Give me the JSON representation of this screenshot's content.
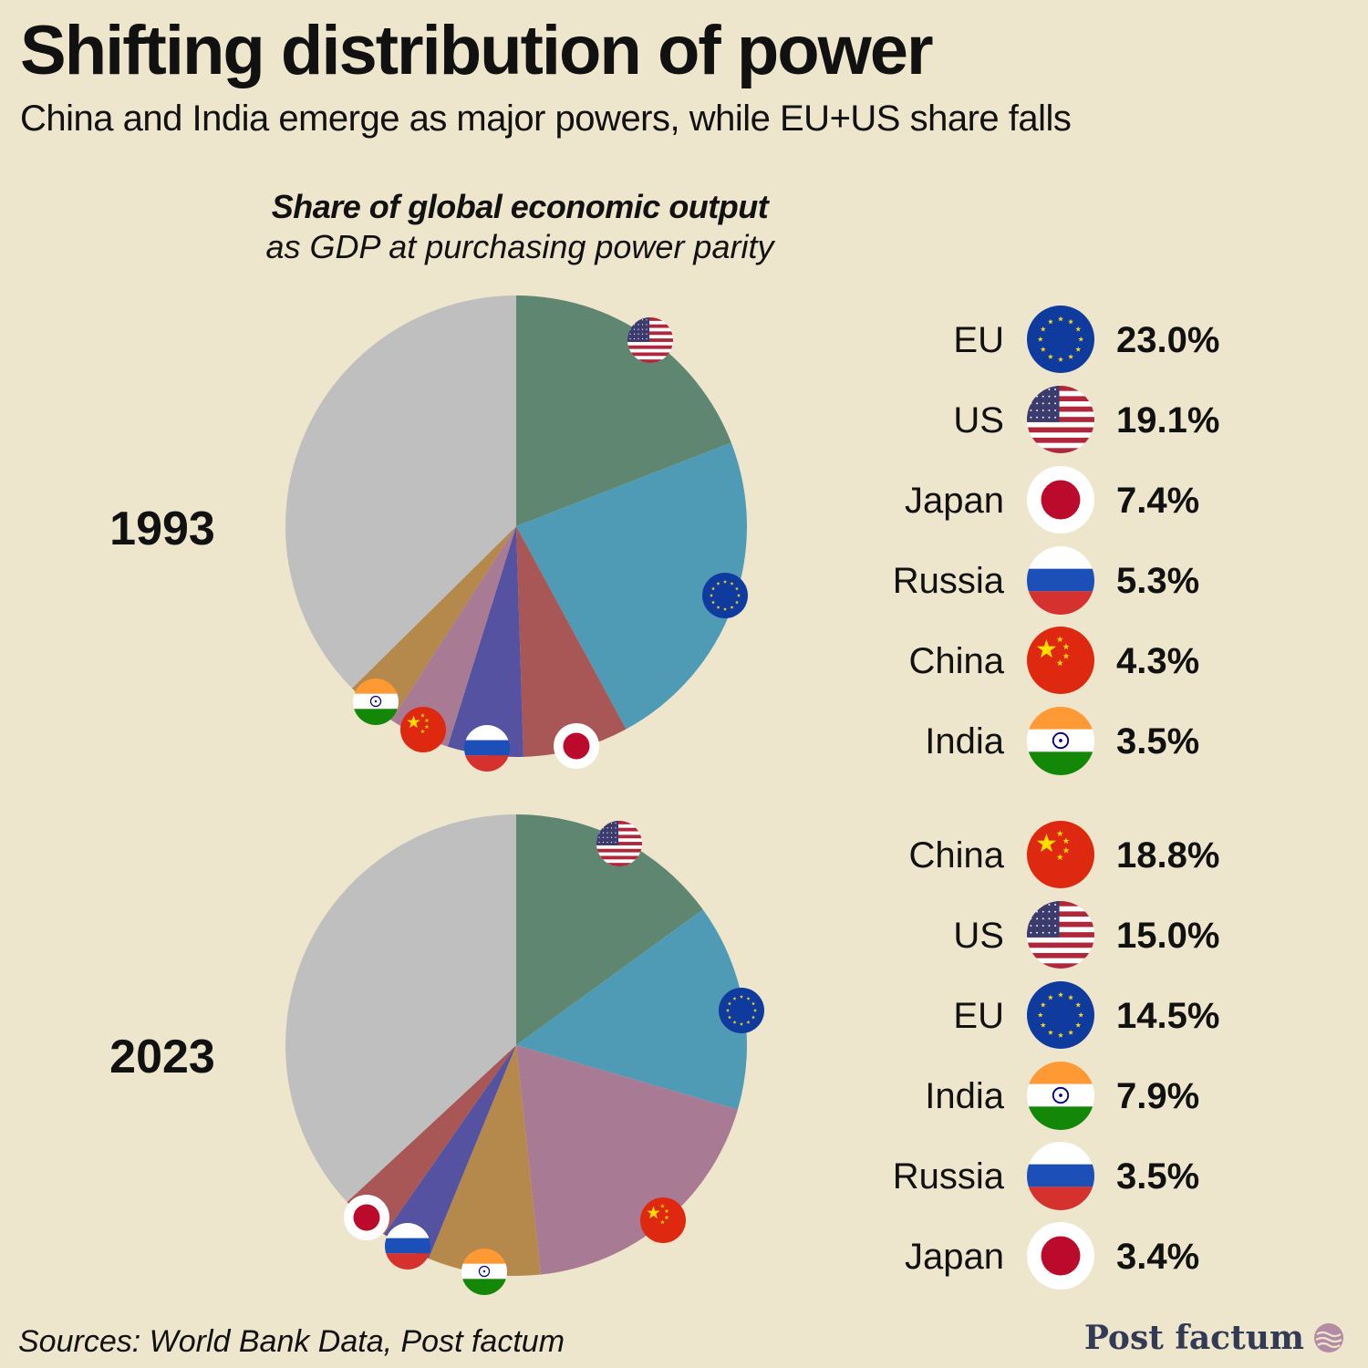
{
  "header": {
    "title": "Shifting distribution of power",
    "subtitle": "China and India emerge as major powers, while EU+US share falls"
  },
  "chart_heading": {
    "main": "Share of global economic output",
    "sub": "as GDP at purchasing power parity"
  },
  "colors": {
    "background": "#ede5cc",
    "US": "#5e8670",
    "EU": "#4f9bb6",
    "Japan": "#a85656",
    "Russia": "#5553a1",
    "China": "#a87a93",
    "India": "#b5894b",
    "Rest of world": "#bfbfbf"
  },
  "chart_data": [
    {
      "type": "pie",
      "year": "1993",
      "title": "Share of global economic output as GDP at purchasing power parity",
      "slice_order": [
        "US",
        "EU",
        "Japan",
        "Russia",
        "China",
        "India",
        "Rest of world"
      ],
      "values": {
        "US": 19.1,
        "EU": 23.0,
        "Japan": 7.4,
        "Russia": 5.3,
        "China": 4.3,
        "India": 3.5
      },
      "legend": [
        {
          "name": "EU",
          "value": "23.0%",
          "flag": "eu-flag"
        },
        {
          "name": "US",
          "value": "19.1%",
          "flag": "us-flag"
        },
        {
          "name": "Japan",
          "value": "7.4%",
          "flag": "japan-flag"
        },
        {
          "name": "Russia",
          "value": "5.3%",
          "flag": "russia-flag"
        },
        {
          "name": "China",
          "value": "4.3%",
          "flag": "china-flag"
        },
        {
          "name": "India",
          "value": "3.5%",
          "flag": "india-flag"
        }
      ]
    },
    {
      "type": "pie",
      "year": "2023",
      "title": "Share of global economic output as GDP at purchasing power parity",
      "slice_order": [
        "US",
        "EU",
        "China",
        "India",
        "Russia",
        "Japan",
        "Rest of world"
      ],
      "values": {
        "China": 18.8,
        "US": 15.0,
        "EU": 14.5,
        "India": 7.9,
        "Russia": 3.5,
        "Japan": 3.4
      },
      "legend": [
        {
          "name": "China",
          "value": "18.8%",
          "flag": "china-flag"
        },
        {
          "name": "US",
          "value": "15.0%",
          "flag": "us-flag"
        },
        {
          "name": "EU",
          "value": "14.5%",
          "flag": "eu-flag"
        },
        {
          "name": "India",
          "value": "7.9%",
          "flag": "india-flag"
        },
        {
          "name": "Russia",
          "value": "3.5%",
          "flag": "russia-flag"
        },
        {
          "name": "Japan",
          "value": "3.4%",
          "flag": "japan-flag"
        }
      ]
    }
  ],
  "footer": {
    "source": "Sources: World Bank Data, Post factum",
    "brand": "Post factum"
  }
}
